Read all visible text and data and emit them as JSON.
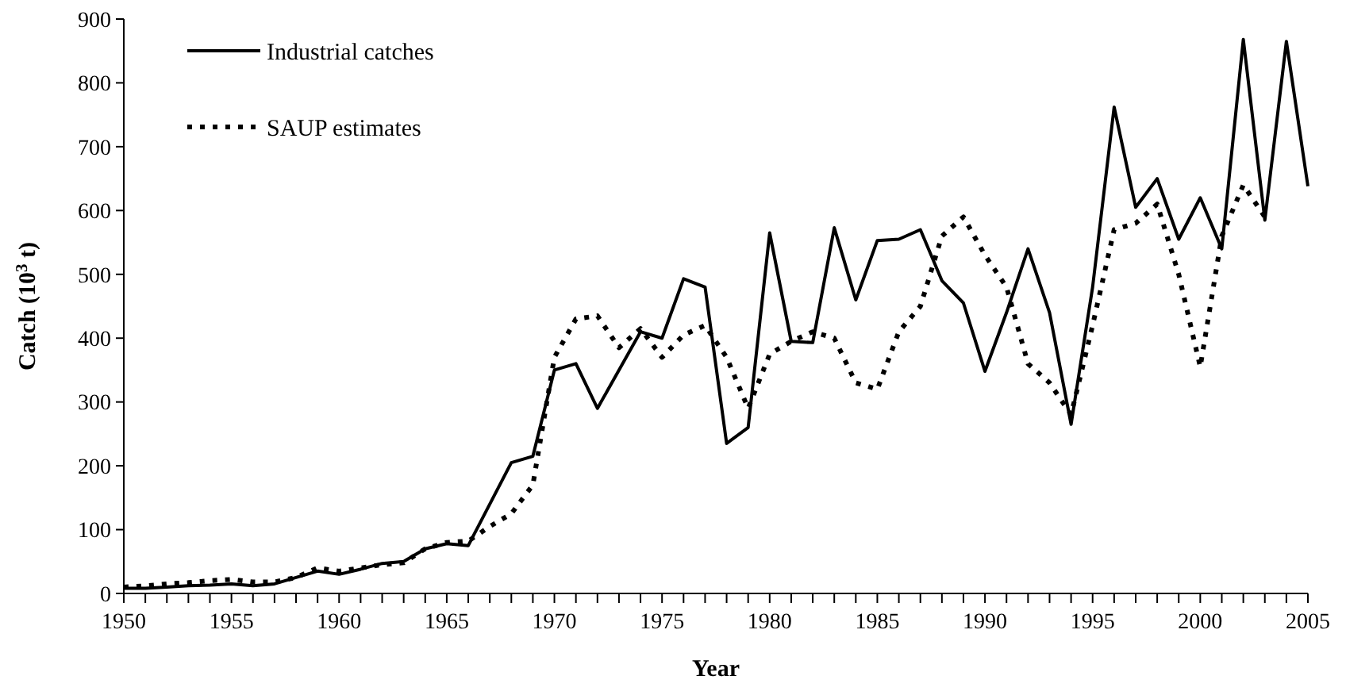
{
  "chart_data": {
    "type": "line",
    "xlabel": "Year",
    "ylabel": "Catch (10$^{3}$ t)",
    "xlim": [
      1950,
      2005
    ],
    "ylim": [
      0,
      900
    ],
    "xticks": [
      1950,
      {
        "value": 1951,
        "label": null
      },
      {
        "value": 1952,
        "label": null
      },
      {
        "value": 1953,
        "label": null
      },
      {
        "value": 1954,
        "label": null
      },
      1955,
      {
        "value": 1956,
        "label": null
      },
      {
        "value": 1957,
        "label": null
      },
      {
        "value": 1958,
        "label": null
      },
      {
        "value": 1959,
        "label": null
      },
      1960,
      {
        "value": 1961,
        "label": null
      },
      {
        "value": 1962,
        "label": null
      },
      {
        "value": 1963,
        "label": null
      },
      {
        "value": 1964,
        "label": null
      },
      1965,
      {
        "value": 1966,
        "label": null
      },
      {
        "value": 1967,
        "label": null
      },
      {
        "value": 1968,
        "label": null
      },
      {
        "value": 1969,
        "label": null
      },
      1970,
      {
        "value": 1971,
        "label": null
      },
      {
        "value": 1972,
        "label": null
      },
      {
        "value": 1973,
        "label": null
      },
      {
        "value": 1974,
        "label": null
      },
      1975,
      {
        "value": 1976,
        "label": null
      },
      {
        "value": 1977,
        "label": null
      },
      {
        "value": 1978,
        "label": null
      },
      {
        "value": 1979,
        "label": null
      },
      1980,
      {
        "value": 1981,
        "label": null
      },
      {
        "value": 1982,
        "label": null
      },
      {
        "value": 1983,
        "label": null
      },
      {
        "value": 1984,
        "label": null
      },
      1985,
      {
        "value": 1986,
        "label": null
      },
      {
        "value": 1987,
        "label": null
      },
      {
        "value": 1988,
        "label": null
      },
      {
        "value": 1989,
        "label": null
      },
      1990,
      {
        "value": 1991,
        "label": null
      },
      {
        "value": 1992,
        "label": null
      },
      {
        "value": 1993,
        "label": null
      },
      {
        "value": 1994,
        "label": null
      },
      1995,
      {
        "value": 1996,
        "label": null
      },
      {
        "value": 1997,
        "label": null
      },
      {
        "value": 1998,
        "label": null
      },
      {
        "value": 1999,
        "label": null
      },
      2000,
      {
        "value": 2001,
        "label": null
      },
      {
        "value": 2002,
        "label": null
      },
      {
        "value": 2003,
        "label": null
      },
      {
        "value": 2004,
        "label": null
      },
      2005
    ],
    "yticks": [
      0,
      100,
      200,
      300,
      400,
      500,
      600,
      700,
      800,
      900
    ],
    "grid": false,
    "legend": "top left",
    "marker": "none",
    "series": [
      {
        "name": "Industrial catches",
        "color": "#000000",
        "line_style": "solid",
        "x": [
          1950,
          1951,
          1952,
          1953,
          1954,
          1955,
          1956,
          1957,
          1958,
          1959,
          1960,
          1961,
          1962,
          1963,
          1964,
          1965,
          1966,
          1967,
          1968,
          1969,
          1970,
          1971,
          1972,
          1973,
          1974,
          1975,
          1976,
          1977,
          1978,
          1979,
          1980,
          1981,
          1982,
          1983,
          1984,
          1985,
          1986,
          1987,
          1988,
          1989,
          1990,
          1991,
          1992,
          1993,
          1994,
          1995,
          1996,
          1997,
          1998,
          1999,
          2000,
          2001,
          2002,
          2003,
          2004,
          2005
        ],
        "values": [
          8,
          8,
          10,
          12,
          13,
          15,
          12,
          15,
          25,
          35,
          30,
          38,
          47,
          50,
          70,
          78,
          75,
          140,
          205,
          215,
          350,
          360,
          290,
          350,
          410,
          400,
          493,
          480,
          235,
          260,
          565,
          395,
          393,
          573,
          460,
          553,
          555,
          570,
          490,
          455,
          348,
          440,
          540,
          440,
          265,
          480,
          762,
          605,
          650,
          555,
          620,
          540,
          868,
          585,
          865,
          638
        ]
      },
      {
        "name": "SAUP estimates",
        "color": "#000000",
        "line_style": "dotted",
        "x": [
          1950,
          1951,
          1952,
          1953,
          1954,
          1955,
          1956,
          1957,
          1958,
          1959,
          1960,
          1961,
          1962,
          1963,
          1964,
          1965,
          1966,
          1967,
          1968,
          1969,
          1970,
          1971,
          1972,
          1973,
          1974,
          1975,
          1976,
          1977,
          1978,
          1979,
          1980,
          1981,
          1982,
          1983,
          1984,
          1985,
          1986,
          1987,
          1988,
          1989,
          1990,
          1991,
          1992,
          1993,
          1994,
          1995,
          1996,
          1997,
          1998,
          1999,
          2000,
          2001,
          2002,
          2003
        ],
        "values": [
          10,
          12,
          15,
          17,
          20,
          22,
          18,
          18,
          25,
          40,
          35,
          40,
          45,
          48,
          70,
          80,
          82,
          105,
          125,
          170,
          370,
          430,
          435,
          385,
          415,
          370,
          405,
          420,
          370,
          290,
          375,
          395,
          410,
          400,
          330,
          320,
          410,
          450,
          560,
          590,
          530,
          480,
          360,
          330,
          280,
          420,
          570,
          580,
          610,
          500,
          355,
          560,
          640,
          590
        ]
      }
    ]
  }
}
